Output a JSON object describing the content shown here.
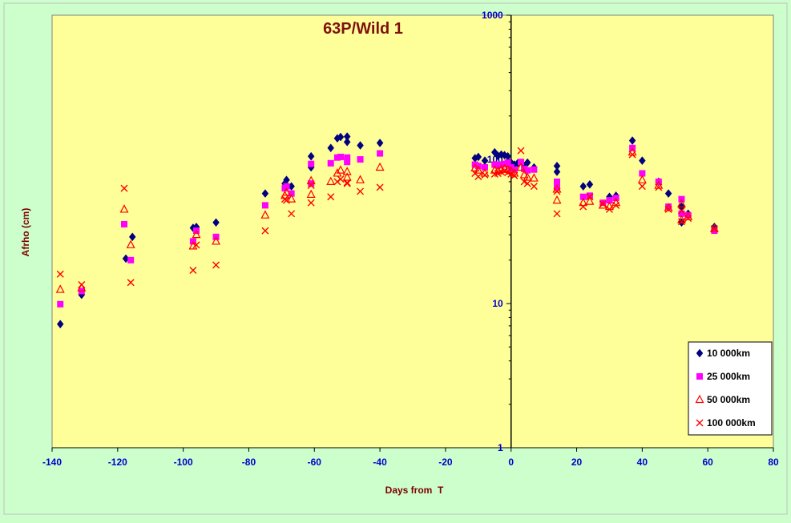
{
  "chart_data": {
    "type": "scatter",
    "title": "63P/Wild 1",
    "xlabel": "Days from  T",
    "ylabel": "Afrho (cm)",
    "xlim": [
      -140,
      80
    ],
    "ylim": [
      1,
      1000
    ],
    "y_scale": "log",
    "x_ticks": [
      "-140",
      "-120",
      "-100",
      "-80",
      "-60",
      "-40",
      "-20",
      "0",
      "20",
      "40",
      "60",
      "80"
    ],
    "y_ticks": [
      "1",
      "10",
      "100",
      "1000"
    ],
    "grid": false,
    "legend_position": "bottom-right",
    "colors": {
      "outer_background": "#ccffcc",
      "plot_background": "#ffff99",
      "series_10000": "#000080",
      "series_25000": "#ff00ff",
      "series_50000": "#ff0000",
      "series_100000": "#ff0000"
    },
    "series": [
      {
        "name": "10 000km",
        "marker": "diamond",
        "points": [
          [
            -137.5,
            7.2
          ],
          [
            -131,
            11.5
          ],
          [
            -117.5,
            20.5
          ],
          [
            -115.5,
            29
          ],
          [
            -97,
            33.5
          ],
          [
            -96,
            34
          ],
          [
            -90,
            36.5
          ],
          [
            -75,
            58
          ],
          [
            -69,
            68
          ],
          [
            -68.5,
            72
          ],
          [
            -67,
            65
          ],
          [
            -61,
            88
          ],
          [
            -61,
            105
          ],
          [
            -55,
            120
          ],
          [
            -53,
            140
          ],
          [
            -52,
            143
          ],
          [
            -50,
            132
          ],
          [
            -50,
            144
          ],
          [
            -46,
            125
          ],
          [
            -40,
            130
          ],
          [
            -11,
            102
          ],
          [
            -10,
            104
          ],
          [
            -8,
            98
          ],
          [
            -5,
            112
          ],
          [
            -4,
            106
          ],
          [
            -3,
            108
          ],
          [
            -2,
            107
          ],
          [
            -1,
            105
          ],
          [
            0,
            95
          ],
          [
            1,
            92
          ],
          [
            2,
            94
          ],
          [
            4,
            90
          ],
          [
            5,
            95
          ],
          [
            7,
            88
          ],
          [
            14,
            82
          ],
          [
            14,
            90
          ],
          [
            22,
            65
          ],
          [
            24,
            67
          ],
          [
            30,
            55
          ],
          [
            32,
            56
          ],
          [
            37,
            135
          ],
          [
            40,
            98
          ],
          [
            45,
            70
          ],
          [
            48,
            58
          ],
          [
            52,
            47
          ],
          [
            52,
            36.5
          ],
          [
            54,
            42
          ],
          [
            62,
            34
          ]
        ]
      },
      {
        "name": "25 000km",
        "marker": "square",
        "points": [
          [
            -137.5,
            9.9
          ],
          [
            -131,
            12.2
          ],
          [
            -118,
            35.5
          ],
          [
            -116,
            20
          ],
          [
            -97,
            27
          ],
          [
            -96,
            32
          ],
          [
            -90,
            29
          ],
          [
            -75,
            48
          ],
          [
            -69,
            63
          ],
          [
            -68.5,
            65
          ],
          [
            -67,
            58
          ],
          [
            -61,
            68
          ],
          [
            -61,
            93
          ],
          [
            -55,
            94
          ],
          [
            -53,
            103
          ],
          [
            -52,
            104
          ],
          [
            -50,
            103
          ],
          [
            -50,
            96
          ],
          [
            -46,
            100
          ],
          [
            -40,
            110
          ],
          [
            -11,
            92
          ],
          [
            -10,
            90
          ],
          [
            -8,
            88
          ],
          [
            -5,
            92
          ],
          [
            -4,
            91
          ],
          [
            -3,
            92
          ],
          [
            -2,
            93
          ],
          [
            -1,
            95
          ],
          [
            0,
            88
          ],
          [
            1,
            85
          ],
          [
            3,
            96
          ],
          [
            4,
            86
          ],
          [
            5,
            84
          ],
          [
            7,
            85
          ],
          [
            14,
            64
          ],
          [
            14,
            70
          ],
          [
            22,
            55
          ],
          [
            24,
            56
          ],
          [
            28,
            50
          ],
          [
            30,
            52
          ],
          [
            32,
            54
          ],
          [
            37,
            120
          ],
          [
            40,
            80
          ],
          [
            45,
            70
          ],
          [
            48,
            47
          ],
          [
            52,
            42
          ],
          [
            52,
            53
          ],
          [
            54,
            41
          ],
          [
            62,
            32
          ]
        ]
      },
      {
        "name": "50 000km",
        "marker": "triangle",
        "points": [
          [
            -137.5,
            12.5
          ],
          [
            -131,
            12.8
          ],
          [
            -118,
            45
          ],
          [
            -116,
            25.5
          ],
          [
            -97,
            25
          ],
          [
            -96,
            30
          ],
          [
            -90,
            27
          ],
          [
            -75,
            41
          ],
          [
            -69,
            56
          ],
          [
            -68.5,
            59
          ],
          [
            -67,
            53
          ],
          [
            -61,
            57
          ],
          [
            -61,
            71
          ],
          [
            -55,
            70
          ],
          [
            -53,
            80
          ],
          [
            -52,
            84
          ],
          [
            -50,
            82
          ],
          [
            -50,
            75
          ],
          [
            -46,
            72
          ],
          [
            -40,
            88
          ],
          [
            -11,
            87
          ],
          [
            -10,
            84
          ],
          [
            -8,
            80
          ],
          [
            -5,
            84
          ],
          [
            -4,
            83
          ],
          [
            -3,
            85
          ],
          [
            -2,
            86
          ],
          [
            -1,
            85
          ],
          [
            0,
            83
          ],
          [
            1,
            80
          ],
          [
            3,
            88
          ],
          [
            4,
            78
          ],
          [
            5,
            75
          ],
          [
            7,
            74
          ],
          [
            14,
            52
          ],
          [
            14,
            62
          ],
          [
            22,
            50
          ],
          [
            24,
            51
          ],
          [
            28,
            48
          ],
          [
            30,
            47
          ],
          [
            32,
            50
          ],
          [
            37,
            112
          ],
          [
            40,
            72
          ],
          [
            45,
            66
          ],
          [
            48,
            46
          ],
          [
            52,
            38
          ],
          [
            52,
            49
          ],
          [
            54,
            40
          ],
          [
            62,
            33
          ]
        ]
      },
      {
        "name": "100 000km",
        "marker": "x",
        "points": [
          [
            -137.5,
            16
          ],
          [
            -131,
            13.5
          ],
          [
            -118,
            63
          ],
          [
            -116,
            14
          ],
          [
            -97,
            17
          ],
          [
            -96,
            25.5
          ],
          [
            -90,
            18.5
          ],
          [
            -75,
            32
          ],
          [
            -69,
            53
          ],
          [
            -68.5,
            52
          ],
          [
            -67,
            42
          ],
          [
            -61,
            50
          ],
          [
            -61,
            66
          ],
          [
            -55,
            55
          ],
          [
            -53,
            70
          ],
          [
            -52,
            73
          ],
          [
            -50,
            69
          ],
          [
            -50,
            68
          ],
          [
            -46,
            60
          ],
          [
            -40,
            64
          ],
          [
            -11,
            80
          ],
          [
            -10,
            76
          ],
          [
            -8,
            78
          ],
          [
            -5,
            79
          ],
          [
            -4,
            80
          ],
          [
            -3,
            82
          ],
          [
            -2,
            83
          ],
          [
            -1,
            81
          ],
          [
            0,
            79
          ],
          [
            1,
            77
          ],
          [
            3,
            115
          ],
          [
            4,
            70
          ],
          [
            5,
            68
          ],
          [
            7,
            65
          ],
          [
            14,
            42
          ],
          [
            14,
            60
          ],
          [
            22,
            47
          ],
          [
            24,
            55
          ],
          [
            28,
            49
          ],
          [
            30,
            45
          ],
          [
            32,
            48
          ],
          [
            37,
            108
          ],
          [
            40,
            65
          ],
          [
            45,
            64
          ],
          [
            48,
            45
          ],
          [
            52,
            37
          ],
          [
            52,
            44
          ],
          [
            54,
            39
          ],
          [
            62,
            33
          ]
        ]
      }
    ]
  }
}
